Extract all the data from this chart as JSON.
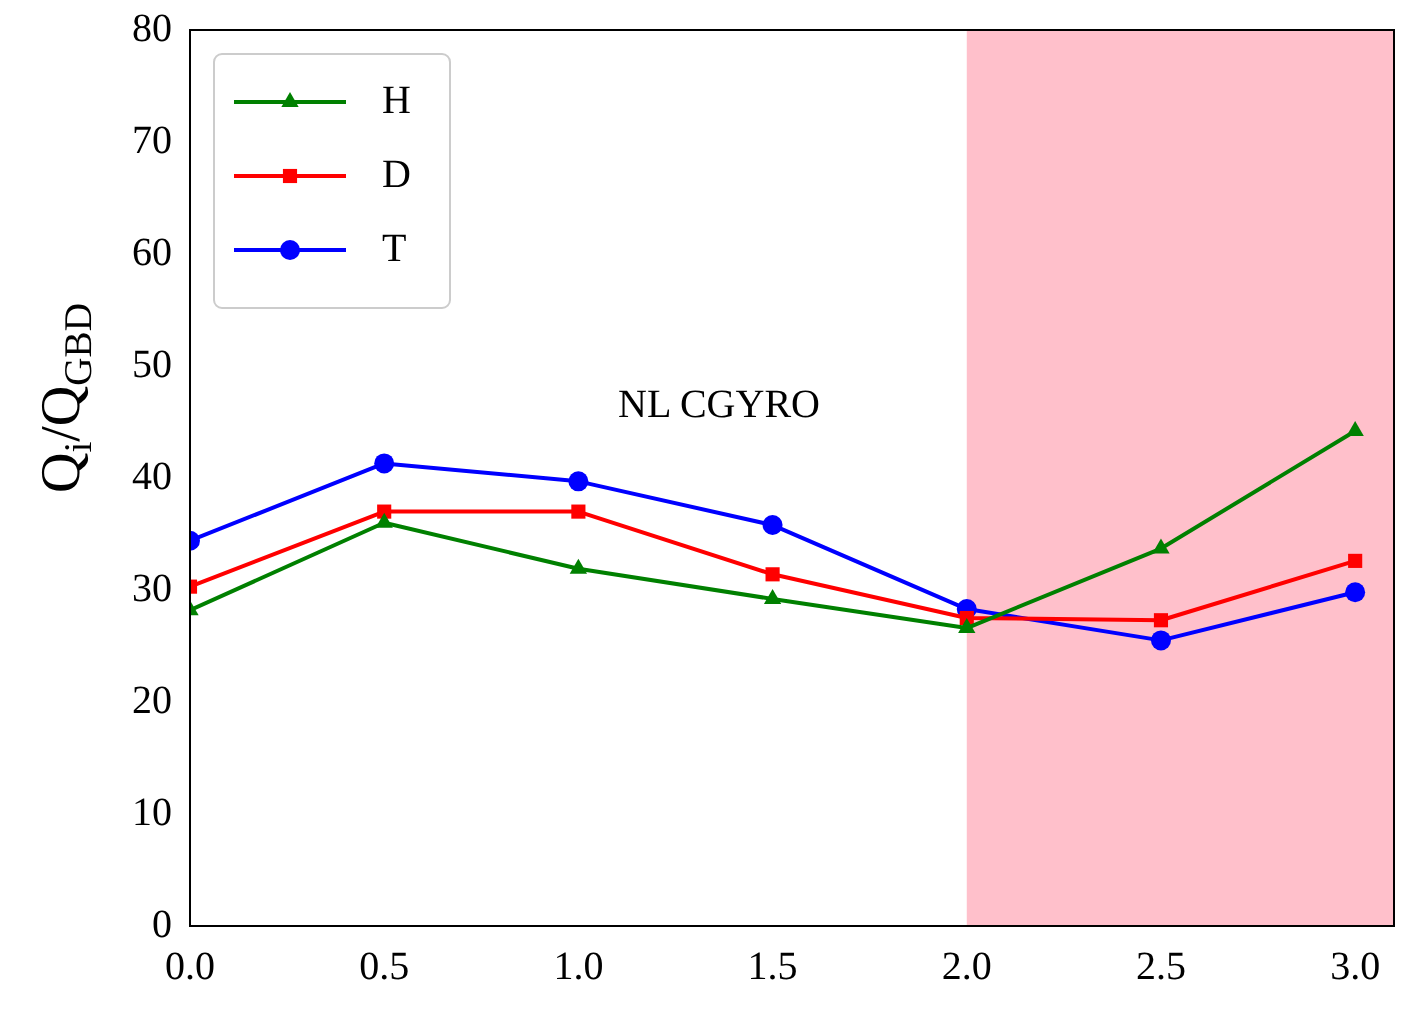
{
  "chart_data": {
    "type": "line",
    "x": [
      0.0,
      0.5,
      1.0,
      1.5,
      2.0,
      2.5,
      3.0
    ],
    "series": [
      {
        "name": "H",
        "color": "#008000",
        "marker": "triangle",
        "values": [
          28.2,
          36.0,
          31.9,
          29.2,
          26.6,
          33.7,
          44.2
        ]
      },
      {
        "name": "D",
        "color": "#ff0000",
        "marker": "square",
        "values": [
          30.3,
          37.0,
          37.0,
          31.4,
          27.5,
          27.3,
          32.6
        ]
      },
      {
        "name": "T",
        "color": "#0000ff",
        "marker": "circle",
        "values": [
          34.4,
          41.3,
          39.7,
          35.8,
          28.3,
          25.5,
          29.8
        ]
      }
    ],
    "ylabel": "Q$_{i}$/Q$_{GBD}$",
    "xlim": [
      0.0,
      3.1
    ],
    "xticks": [
      {
        "value": 0,
        "label": "0.0"
      },
      0.5,
      {
        "value": 1,
        "label": "1.0"
      },
      1.5,
      {
        "value": 2,
        "label": "2.0"
      },
      2.5,
      {
        "value": 3,
        "label": "3.0"
      }
    ],
    "ylim": [
      0,
      80
    ],
    "yticks": [
      0,
      10,
      20,
      30,
      40,
      50,
      60,
      70,
      80
    ],
    "bands": [
      {
        "axis": "x",
        "from": 2.0,
        "to": 3.1,
        "color": "#ffc0cb"
      }
    ],
    "annotations": [
      "NL CGYRO"
    ],
    "legend": "top left",
    "grid": false
  }
}
